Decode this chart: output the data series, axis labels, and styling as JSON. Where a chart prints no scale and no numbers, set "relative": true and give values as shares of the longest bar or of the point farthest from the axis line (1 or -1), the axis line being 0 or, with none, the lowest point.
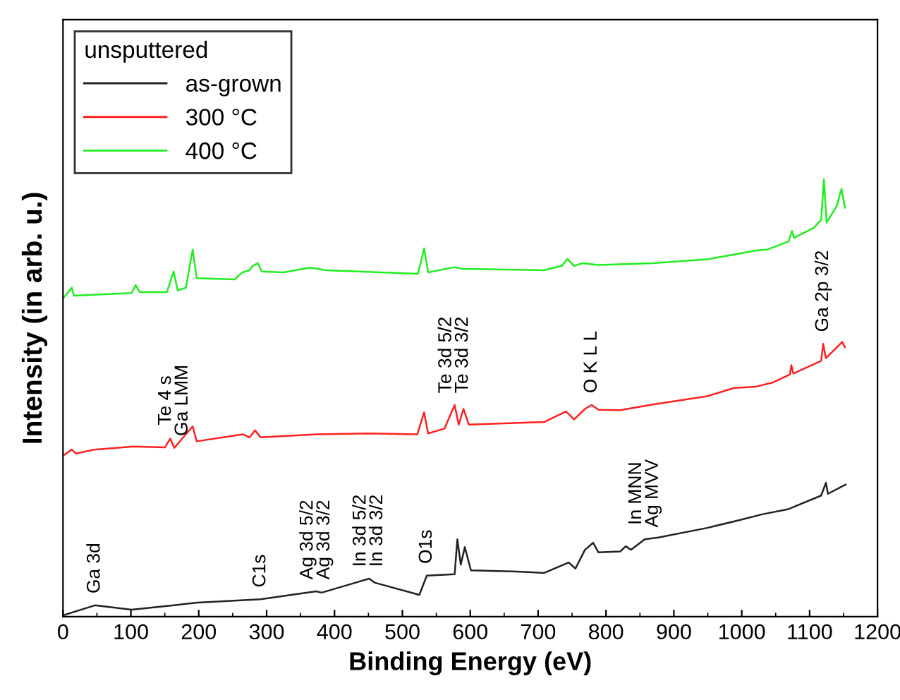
{
  "chart_data": {
    "type": "line",
    "relative": true,
    "xlabel": "Binding Energy (eV)",
    "ylabel": "Intensity (in arb. u.)",
    "legend_title": "unsputtered",
    "legend": "top left",
    "grid": false,
    "marker": "none",
    "line_style": "solid",
    "xlim": [
      0,
      1200
    ],
    "xticks": [
      0,
      100,
      200,
      300,
      400,
      500,
      600,
      700,
      800,
      900,
      1000,
      1100,
      1200
    ],
    "series": [
      {
        "name": "as-grown",
        "color": "#222222",
        "x": [
          2,
          47,
          101,
          198,
          291,
          373,
          381,
          451,
          459,
          525,
          536,
          577,
          581,
          586,
          592,
          601,
          669,
          709,
          745,
          755,
          769,
          781,
          789,
          821,
          829,
          837,
          857,
          877,
          949,
          997,
          1030,
          1069,
          1117,
          1124,
          1127,
          1153
        ],
        "values": [
          0.004,
          0.026,
          0.016,
          0.032,
          0.04,
          0.058,
          0.055,
          0.087,
          0.078,
          0.05,
          0.094,
          0.097,
          0.177,
          0.119,
          0.159,
          0.106,
          0.103,
          0.1,
          0.124,
          0.11,
          0.153,
          0.169,
          0.147,
          0.149,
          0.161,
          0.153,
          0.177,
          0.181,
          0.203,
          0.221,
          0.234,
          0.246,
          0.277,
          0.306,
          0.281,
          0.302
        ]
      },
      {
        "name": "300 °C",
        "color": "#ff2020",
        "x": [
          2,
          13,
          19,
          46,
          104,
          150,
          158,
          164,
          191,
          197,
          265,
          275,
          283,
          291,
          373,
          449,
          522,
          532,
          538,
          562,
          577,
          583,
          590,
          598,
          709,
          741,
          753,
          769,
          779,
          789,
          821,
          869,
          949,
          989,
          1021,
          1045,
          1071,
          1073,
          1076,
          1117,
          1120,
          1124,
          1148,
          1152
        ],
        "values": [
          0.37,
          0.382,
          0.373,
          0.382,
          0.389,
          0.387,
          0.407,
          0.386,
          0.435,
          0.401,
          0.417,
          0.41,
          0.426,
          0.41,
          0.417,
          0.419,
          0.417,
          0.467,
          0.419,
          0.43,
          0.484,
          0.439,
          0.475,
          0.439,
          0.445,
          0.469,
          0.451,
          0.475,
          0.484,
          0.473,
          0.472,
          0.485,
          0.504,
          0.523,
          0.526,
          0.535,
          0.554,
          0.575,
          0.556,
          0.585,
          0.624,
          0.591,
          0.628,
          0.616
        ]
      },
      {
        "name": "400 °C",
        "color": "#20ee20",
        "x": [
          2,
          13,
          16,
          101,
          107,
          113,
          153,
          163,
          169,
          181,
          191,
          197,
          253,
          264,
          275,
          279,
          287,
          293,
          325,
          364,
          388,
          523,
          532,
          538,
          577,
          589,
          709,
          735,
          743,
          753,
          765,
          789,
          869,
          949,
          981,
          1021,
          1037,
          1069,
          1074,
          1077,
          1106,
          1117,
          1121,
          1125,
          1140,
          1147,
          1152
        ],
        "values": [
          0.731,
          0.752,
          0.734,
          0.74,
          0.758,
          0.742,
          0.742,
          0.789,
          0.746,
          0.752,
          0.839,
          0.774,
          0.771,
          0.787,
          0.792,
          0.802,
          0.808,
          0.789,
          0.787,
          0.798,
          0.792,
          0.784,
          0.842,
          0.787,
          0.799,
          0.795,
          0.792,
          0.802,
          0.818,
          0.802,
          0.808,
          0.804,
          0.808,
          0.817,
          0.826,
          0.837,
          0.839,
          0.858,
          0.882,
          0.866,
          0.889,
          0.907,
          1.0,
          0.901,
          0.939,
          0.978,
          0.935
        ]
      }
    ],
    "annotations": [
      {
        "text": "Ga 3d",
        "x": 47,
        "y": 0.026
      },
      {
        "text": "C1s",
        "x": 291,
        "y": 0.04
      },
      {
        "text": "Ag 3d 5/2\nAg 3d 3/2",
        "x": 373,
        "y": 0.058
      },
      {
        "text": "In 3d 5/2\nIn 3d 3/2",
        "x": 451,
        "y": 0.087
      },
      {
        "text": "O1s",
        "x": 536,
        "y": 0.094
      },
      {
        "text": "In MNN\nAg MVV",
        "x": 857,
        "y": 0.177
      },
      {
        "text": "Te 4 s\nGa LMM",
        "x": 164,
        "y": 0.386
      },
      {
        "text": "Te 3d 5/2\nTe 3d 3/2",
        "x": 577,
        "y": 0.484
      },
      {
        "text": "O K L L",
        "x": 779,
        "y": 0.484
      },
      {
        "text": "Ga 2p 3/2",
        "x": 1120,
        "y": 0.624
      }
    ]
  }
}
